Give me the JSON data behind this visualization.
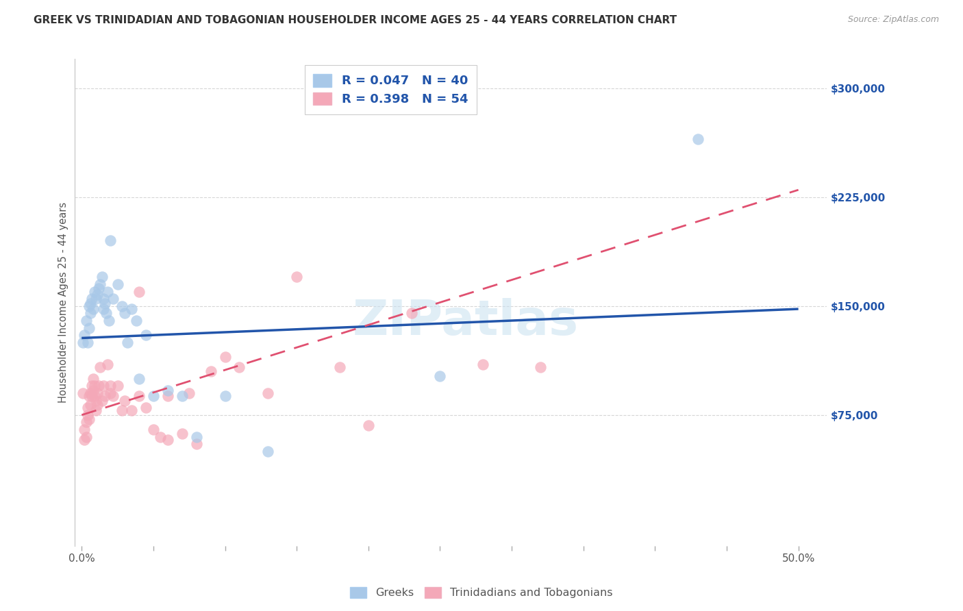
{
  "title": "GREEK VS TRINIDADIAN AND TOBAGONIAN HOUSEHOLDER INCOME AGES 25 - 44 YEARS CORRELATION CHART",
  "source": "Source: ZipAtlas.com",
  "ylabel": "Householder Income Ages 25 - 44 years",
  "xlim": [
    -0.005,
    0.52
  ],
  "ylim": [
    -15000,
    320000
  ],
  "watermark": "ZIPatlas",
  "greek_color": "#a8c8e8",
  "tnt_color": "#f4a8b8",
  "greek_line_color": "#2255aa",
  "tnt_line_color": "#e05070",
  "background_color": "#ffffff",
  "grid_color": "#cccccc",
  "ytick_vals": [
    75000,
    150000,
    225000,
    300000
  ],
  "ytick_labels": [
    "$75,000",
    "$150,000",
    "$225,000",
    "$300,000"
  ],
  "greek_scatter_x": [
    0.001,
    0.002,
    0.003,
    0.004,
    0.005,
    0.005,
    0.006,
    0.006,
    0.007,
    0.008,
    0.009,
    0.01,
    0.011,
    0.012,
    0.013,
    0.014,
    0.015,
    0.015,
    0.016,
    0.017,
    0.018,
    0.019,
    0.02,
    0.022,
    0.025,
    0.028,
    0.03,
    0.032,
    0.035,
    0.038,
    0.04,
    0.045,
    0.05,
    0.06,
    0.07,
    0.08,
    0.1,
    0.13,
    0.25,
    0.43
  ],
  "greek_scatter_y": [
    125000,
    130000,
    140000,
    125000,
    150000,
    135000,
    145000,
    152000,
    155000,
    148000,
    160000,
    155000,
    158000,
    162000,
    165000,
    170000,
    155000,
    148000,
    152000,
    145000,
    160000,
    140000,
    195000,
    155000,
    165000,
    150000,
    145000,
    125000,
    148000,
    140000,
    100000,
    130000,
    88000,
    92000,
    88000,
    60000,
    88000,
    50000,
    102000,
    265000
  ],
  "tnt_scatter_x": [
    0.001,
    0.002,
    0.002,
    0.003,
    0.003,
    0.004,
    0.004,
    0.005,
    0.005,
    0.006,
    0.006,
    0.007,
    0.007,
    0.008,
    0.008,
    0.009,
    0.009,
    0.01,
    0.01,
    0.011,
    0.011,
    0.012,
    0.013,
    0.014,
    0.015,
    0.016,
    0.018,
    0.02,
    0.022,
    0.025,
    0.028,
    0.03,
    0.035,
    0.04,
    0.045,
    0.05,
    0.055,
    0.06,
    0.07,
    0.08,
    0.09,
    0.1,
    0.11,
    0.13,
    0.15,
    0.18,
    0.2,
    0.23,
    0.28,
    0.32,
    0.06,
    0.075,
    0.04,
    0.02
  ],
  "tnt_scatter_y": [
    90000,
    65000,
    58000,
    70000,
    60000,
    80000,
    75000,
    88000,
    72000,
    90000,
    82000,
    95000,
    88000,
    100000,
    92000,
    95000,
    88000,
    85000,
    78000,
    90000,
    82000,
    95000,
    108000,
    85000,
    95000,
    88000,
    110000,
    90000,
    88000,
    95000,
    78000,
    85000,
    78000,
    88000,
    80000,
    65000,
    60000,
    58000,
    62000,
    55000,
    105000,
    115000,
    108000,
    90000,
    170000,
    108000,
    68000,
    145000,
    110000,
    108000,
    88000,
    90000,
    160000,
    95000
  ],
  "greek_trendline_x": [
    0.0,
    0.5
  ],
  "greek_trendline_y": [
    128000,
    148000
  ],
  "tnt_trendline_x": [
    0.0,
    0.5
  ],
  "tnt_trendline_y": [
    75000,
    230000
  ]
}
